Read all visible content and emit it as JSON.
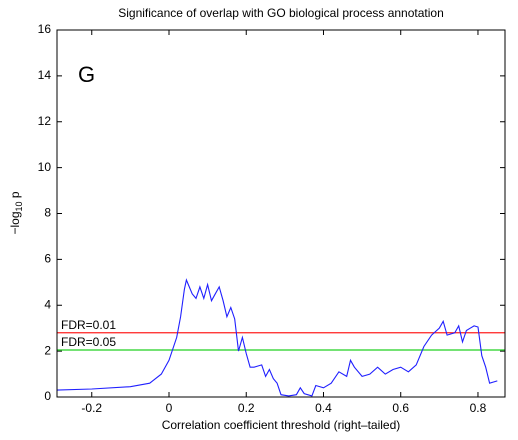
{
  "chart_data": {
    "type": "line",
    "title": "Significance of overlap with GO biological process annotation",
    "xlabel": "Correlation coefficient threshold (right–tailed)",
    "ylabel": "−log",
    "ylabel_sub": "10",
    "ylabel_suffix": " p",
    "annotation": "G",
    "xlim": [
      -0.29,
      0.87
    ],
    "ylim": [
      0,
      16
    ],
    "xticks": [
      -0.2,
      0,
      0.2,
      0.4,
      0.6,
      0.8
    ],
    "yticks": [
      0,
      2,
      4,
      6,
      8,
      10,
      12,
      14,
      16
    ],
    "hlines": [
      {
        "value": 2.8,
        "label": "FDR=0.01",
        "color": "#ff2020"
      },
      {
        "value": 2.05,
        "label": "FDR=0.05",
        "color": "#20d020"
      }
    ],
    "series": [
      {
        "color": "#2020ff",
        "x": [
          -0.29,
          -0.2,
          -0.1,
          -0.05,
          -0.02,
          0.0,
          0.02,
          0.03,
          0.04,
          0.045,
          0.06,
          0.07,
          0.08,
          0.09,
          0.1,
          0.11,
          0.12,
          0.13,
          0.14,
          0.15,
          0.16,
          0.17,
          0.18,
          0.19,
          0.2,
          0.21,
          0.22,
          0.24,
          0.25,
          0.26,
          0.27,
          0.28,
          0.29,
          0.31,
          0.33,
          0.34,
          0.35,
          0.37,
          0.38,
          0.4,
          0.42,
          0.44,
          0.46,
          0.47,
          0.48,
          0.5,
          0.52,
          0.54,
          0.56,
          0.58,
          0.6,
          0.62,
          0.64,
          0.66,
          0.68,
          0.7,
          0.71,
          0.72,
          0.74,
          0.75,
          0.76,
          0.77,
          0.78,
          0.79,
          0.8,
          0.81,
          0.82,
          0.83,
          0.85
        ],
        "values": [
          0.3,
          0.35,
          0.45,
          0.6,
          1.0,
          1.6,
          2.6,
          3.5,
          4.7,
          5.1,
          4.5,
          4.3,
          4.8,
          4.3,
          4.9,
          4.2,
          4.5,
          4.8,
          4.2,
          3.5,
          3.9,
          3.4,
          2.0,
          2.6,
          1.9,
          1.3,
          1.3,
          1.4,
          0.9,
          1.2,
          0.8,
          0.6,
          0.1,
          0.05,
          0.1,
          0.4,
          0.15,
          0.05,
          0.5,
          0.4,
          0.6,
          1.1,
          0.9,
          1.6,
          1.3,
          0.9,
          1.0,
          1.3,
          1.0,
          1.2,
          1.3,
          1.1,
          1.4,
          2.2,
          2.7,
          3.0,
          3.3,
          2.7,
          2.8,
          3.1,
          2.4,
          2.9,
          3.0,
          3.1,
          3.05,
          1.8,
          1.3,
          0.6,
          0.7
        ]
      }
    ]
  }
}
